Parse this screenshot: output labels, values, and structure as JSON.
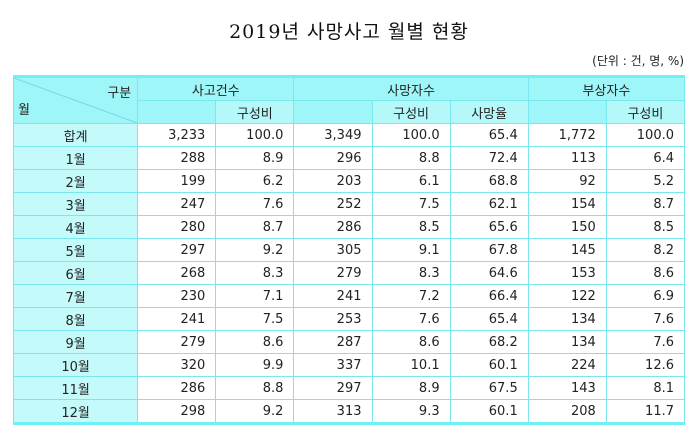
{
  "title": "2019년 사망사고 월별 현황",
  "unit_note": "(단위 : 건, 명, %)",
  "table": {
    "corner": {
      "top_right_label": "구분",
      "bottom_left_label": "월"
    },
    "group_headers": {
      "accidents": "사고건수",
      "deaths": "사망자수",
      "injured": "부상자수"
    },
    "sub_headers": {
      "accidents_ratio": "구성비",
      "deaths_ratio": "구성비",
      "death_rate": "사망율",
      "injured_ratio": "구성비"
    },
    "columns": [
      "월",
      "사고건수",
      "사고건수 구성비",
      "사망자수",
      "사망자수 구성비",
      "사망율",
      "부상자수",
      "부상자수 구성비"
    ],
    "rows": [
      {
        "month": "합계",
        "accidents": "3,233",
        "accidents_ratio": "100.0",
        "deaths": "3,349",
        "deaths_ratio": "100.0",
        "death_rate": "65.4",
        "injured": "1,772",
        "injured_ratio": "100.0"
      },
      {
        "month": "1월",
        "accidents": "288",
        "accidents_ratio": "8.9",
        "deaths": "296",
        "deaths_ratio": "8.8",
        "death_rate": "72.4",
        "injured": "113",
        "injured_ratio": "6.4"
      },
      {
        "month": "2월",
        "accidents": "199",
        "accidents_ratio": "6.2",
        "deaths": "203",
        "deaths_ratio": "6.1",
        "death_rate": "68.8",
        "injured": "92",
        "injured_ratio": "5.2"
      },
      {
        "month": "3월",
        "accidents": "247",
        "accidents_ratio": "7.6",
        "deaths": "252",
        "deaths_ratio": "7.5",
        "death_rate": "62.1",
        "injured": "154",
        "injured_ratio": "8.7"
      },
      {
        "month": "4월",
        "accidents": "280",
        "accidents_ratio": "8.7",
        "deaths": "286",
        "deaths_ratio": "8.5",
        "death_rate": "65.6",
        "injured": "150",
        "injured_ratio": "8.5"
      },
      {
        "month": "5월",
        "accidents": "297",
        "accidents_ratio": "9.2",
        "deaths": "305",
        "deaths_ratio": "9.1",
        "death_rate": "67.8",
        "injured": "145",
        "injured_ratio": "8.2"
      },
      {
        "month": "6월",
        "accidents": "268",
        "accidents_ratio": "8.3",
        "deaths": "279",
        "deaths_ratio": "8.3",
        "death_rate": "64.6",
        "injured": "153",
        "injured_ratio": "8.6"
      },
      {
        "month": "7월",
        "accidents": "230",
        "accidents_ratio": "7.1",
        "deaths": "241",
        "deaths_ratio": "7.2",
        "death_rate": "66.4",
        "injured": "122",
        "injured_ratio": "6.9"
      },
      {
        "month": "8월",
        "accidents": "241",
        "accidents_ratio": "7.5",
        "deaths": "253",
        "deaths_ratio": "7.6",
        "death_rate": "65.4",
        "injured": "134",
        "injured_ratio": "7.6"
      },
      {
        "month": "9월",
        "accidents": "279",
        "accidents_ratio": "8.6",
        "deaths": "287",
        "deaths_ratio": "8.6",
        "death_rate": "68.2",
        "injured": "134",
        "injured_ratio": "7.6"
      },
      {
        "month": "10월",
        "accidents": "320",
        "accidents_ratio": "9.9",
        "deaths": "337",
        "deaths_ratio": "10.1",
        "death_rate": "60.1",
        "injured": "224",
        "injured_ratio": "12.6"
      },
      {
        "month": "11월",
        "accidents": "286",
        "accidents_ratio": "8.8",
        "deaths": "297",
        "deaths_ratio": "8.9",
        "death_rate": "67.5",
        "injured": "143",
        "injured_ratio": "8.1"
      },
      {
        "month": "12월",
        "accidents": "298",
        "accidents_ratio": "9.2",
        "deaths": "313",
        "deaths_ratio": "9.3",
        "death_rate": "60.1",
        "injured": "208",
        "injured_ratio": "11.7"
      }
    ]
  },
  "colors": {
    "header_bg": "#9ff6f8",
    "month_col_bg": "#c5fafb",
    "grid_line": "#7ae6ee",
    "rule": "#6ff0f4"
  }
}
